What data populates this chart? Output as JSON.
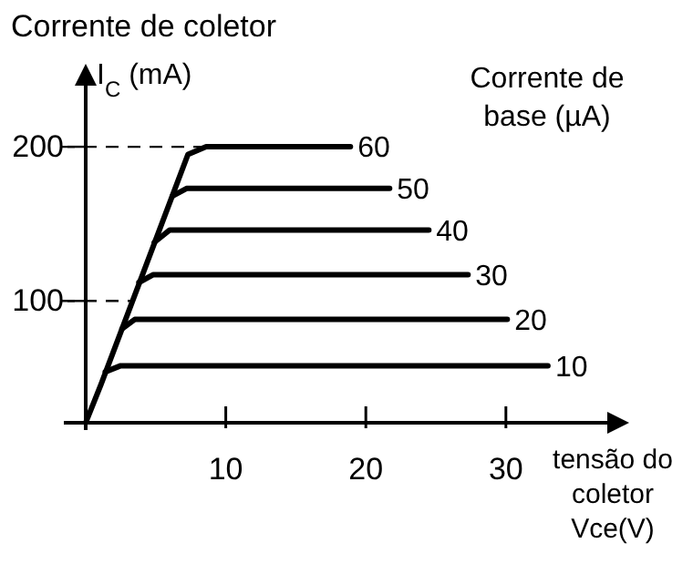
{
  "chart_data": {
    "type": "line",
    "title": "Corrente de coletor",
    "ylabel": "I$_{C}$ (mA)",
    "xlabel": "tensão do coletor Vce(V)",
    "legend_title": "Corrente de base (µA)",
    "xlim": [
      0,
      37.5
    ],
    "xticks": [
      10,
      20,
      30
    ],
    "ylim": [
      21,
      242
    ],
    "yticks": [
      100,
      200
    ],
    "grid": false,
    "marker": "none",
    "line_style": "solid",
    "series": [
      {
        "name": "60",
        "color": "#000000",
        "x": [
          0,
          1.1,
          7.3,
          8.6,
          18.9
        ],
        "values": [
          21,
          46,
          195,
          200,
          200
        ]
      },
      {
        "name": "50",
        "color": "#000000",
        "x": [
          6.2,
          7.2,
          21.7
        ],
        "values": [
          168,
          173,
          173
        ]
      },
      {
        "name": "40",
        "color": "#000000",
        "x": [
          4.9,
          6,
          24.5
        ],
        "values": [
          138,
          146,
          146
        ]
      },
      {
        "name": "30",
        "color": "#000000",
        "x": [
          3.8,
          4.8,
          27.3
        ],
        "values": [
          112,
          117,
          117
        ]
      },
      {
        "name": "20",
        "color": "#000000",
        "x": [
          2.6,
          3.5,
          30.1
        ],
        "values": [
          82,
          88,
          88
        ]
      },
      {
        "name": "10",
        "color": "#000000",
        "x": [
          1.4,
          2.5,
          33
        ],
        "values": [
          54,
          58,
          58
        ]
      }
    ],
    "ref_lines": [
      {
        "axis": "y",
        "value": 200,
        "color": "#000000",
        "line_style": "dashed"
      },
      {
        "axis": "y",
        "value": 100,
        "color": "#000000",
        "line_style": "dashed"
      }
    ]
  }
}
